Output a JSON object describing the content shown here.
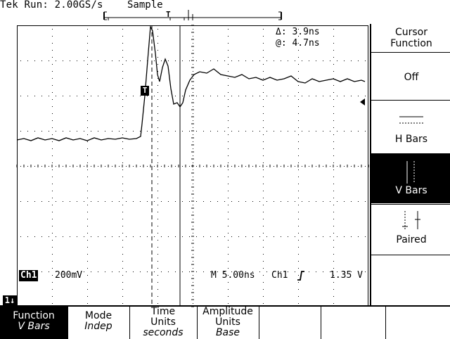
{
  "header": {
    "title": "Tek Run: 2.00GS/s",
    "acquisition_mode": "Sample"
  },
  "cursor_readout": {
    "delta_value": "Δ: 3.9ns",
    "at_value": "@: 4.7ns"
  },
  "status": {
    "channel": "Ch1",
    "volts_per_div": "200mV",
    "timebase": "M 5.00ns",
    "trigger_channel": "Ch1",
    "trigger_level": "1.35 V"
  },
  "waveform": {
    "channel_marker": "1",
    "trigger_marker": "T",
    "ground_marker": "1"
  },
  "side_menu": {
    "title_line1": "Cursor",
    "title_line2": "Function",
    "items": [
      {
        "label": "Off"
      },
      {
        "label": "H Bars"
      },
      {
        "label": "V Bars",
        "selected": true
      },
      {
        "label": "Paired"
      }
    ]
  },
  "bottom_menu": {
    "buttons": [
      {
        "line1": "Function",
        "line2": "V Bars",
        "selected": true
      },
      {
        "line1": "Mode",
        "line2": "Indep"
      },
      {
        "line1": "Time",
        "line2": "Units",
        "line3": "seconds"
      },
      {
        "line1": "Amplitude",
        "line2": "Units",
        "line3": "Base"
      }
    ]
  },
  "colors": {
    "foreground": "#000000",
    "background": "#ffffff"
  }
}
